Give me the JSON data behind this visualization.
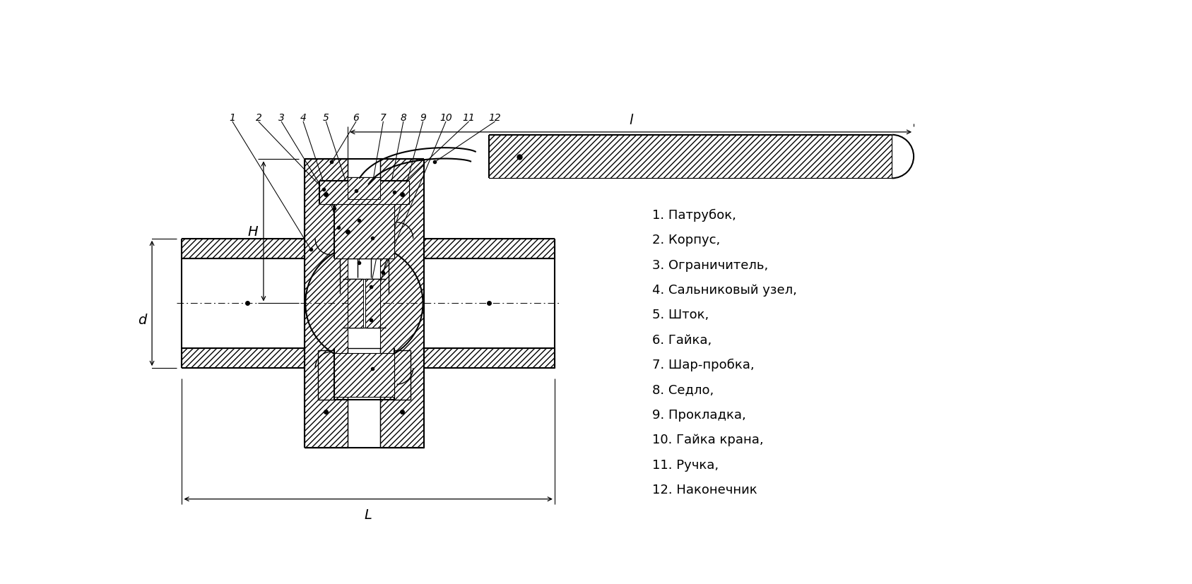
{
  "background_color": "#ffffff",
  "line_color": "#000000",
  "legend_items": [
    "1. Патрубок,",
    "2. Корпус,",
    "3. Ограничитель,",
    "4. Сальниковый узел,",
    "5. Шток,",
    "6. Гайка,",
    "7. Шар-пробка,",
    "8. Седло,",
    "9. Прокладка,",
    "10. Гайка крана,",
    "11. Ручка,",
    "12. Наконечник"
  ],
  "dim_l": "l",
  "dim_L": "L",
  "dim_H": "H",
  "dim_d": "d"
}
